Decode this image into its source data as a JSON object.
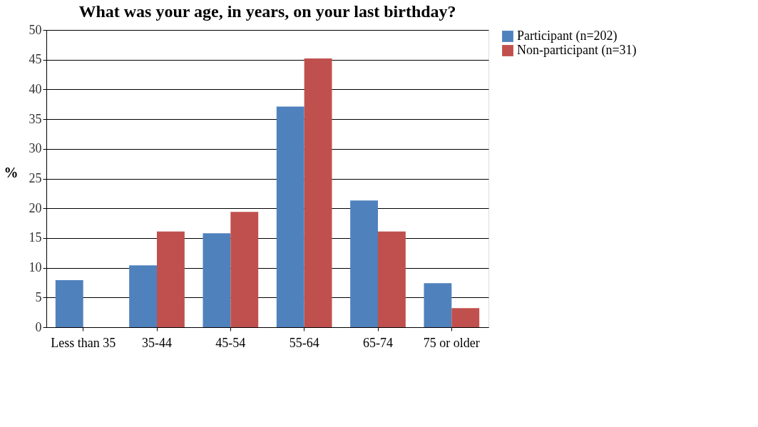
{
  "chart_data": {
    "type": "bar",
    "title": "What was your age, in years, on your last birthday?",
    "ylabel": "%",
    "categories": [
      "Less than 35",
      "35-44",
      "45-54",
      "55-64",
      "65-74",
      "75 or older"
    ],
    "series": [
      {
        "name": "Participant (n=202)",
        "color": "#4f81bd",
        "values": [
          7.9,
          10.4,
          15.8,
          37.1,
          21.3,
          7.4
        ]
      },
      {
        "name": "Non-participant (n=31)",
        "color": "#c0504d",
        "values": [
          0,
          16.1,
          19.4,
          45.2,
          16.1,
          3.2
        ]
      }
    ],
    "ylim": [
      0,
      50
    ],
    "yticks": [
      0,
      5,
      10,
      15,
      20,
      25,
      30,
      35,
      40,
      45,
      50
    ],
    "grid": "y",
    "legend": "right"
  }
}
